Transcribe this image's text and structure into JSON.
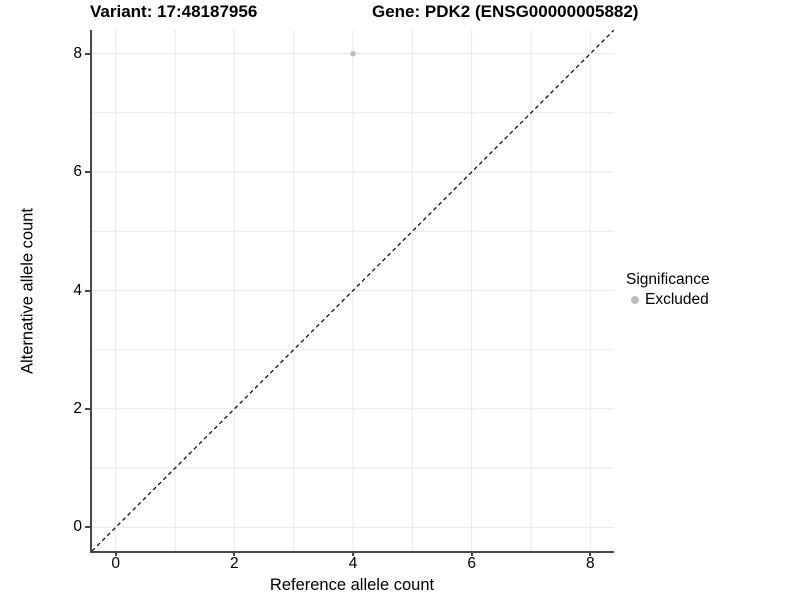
{
  "chart_data": {
    "type": "scatter",
    "title_left": "Variant: 17:48187956",
    "title_right": "Gene: PDK2 (ENSG00000005882)",
    "xlabel": "Reference allele count",
    "ylabel": "Alternative allele count",
    "xlim": [
      -0.4,
      8.4
    ],
    "ylim": [
      -0.4,
      8.4
    ],
    "xticks": [
      0,
      2,
      4,
      6,
      8
    ],
    "yticks": [
      0,
      2,
      4,
      6,
      8
    ],
    "grid_x": [
      0,
      1,
      2,
      3,
      4,
      5,
      6,
      7,
      8
    ],
    "grid_y": [
      0,
      1,
      2,
      3,
      4,
      5,
      6,
      7,
      8
    ],
    "grid_on": true,
    "abline": {
      "slope": 1,
      "intercept": 0,
      "style": "dashed"
    },
    "series": [
      {
        "name": "Excluded",
        "color": "#bdbdbd",
        "points": [
          {
            "x": 4,
            "y": 8
          }
        ]
      }
    ],
    "legend": {
      "title": "Significance",
      "position": "right",
      "items": [
        {
          "label": "Excluded",
          "color": "#bdbdbd"
        }
      ]
    },
    "colors": {
      "grid": "#e8e8e8",
      "axis": "#474747",
      "abline": "#111111",
      "background": "#ffffff",
      "text": "#000000"
    }
  }
}
